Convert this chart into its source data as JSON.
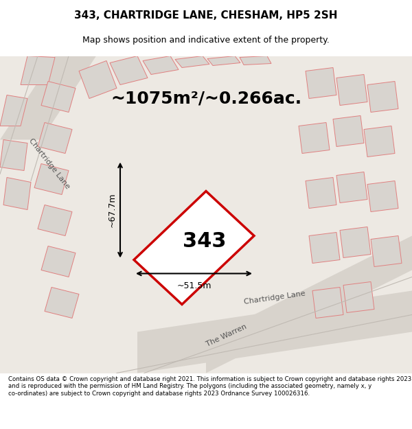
{
  "title": "343, CHARTRIDGE LANE, CHESHAM, HP5 2SH",
  "subtitle": "Map shows position and indicative extent of the property.",
  "area_text": "~1075m²/~0.266ac.",
  "label_343": "343",
  "dim_height": "~67.7m",
  "dim_width": "~51.5m",
  "road_label1": "Chartridge Lane",
  "road_label2": "Chartridge Lane",
  "road_label3": "The Warren",
  "footer": "Contains OS data © Crown copyright and database right 2021. This information is subject to Crown copyright and database rights 2023 and is reproduced with the permission of HM Land Registry. The polygons (including the associated geometry, namely x, y co-ordinates) are subject to Crown copyright and database rights 2023 Ordnance Survey 100026316.",
  "bg_color": "#f0eeeb",
  "map_bg": "#ede9e3",
  "road_color": "#d4cfc8",
  "plot_outline_color": "#cc0000",
  "plot_fill_color": "#ffffff",
  "building_color": "#d0ccc8",
  "building_outline": "#cc0000",
  "footer_bg": "#ffffff",
  "title_bg": "#ffffff"
}
